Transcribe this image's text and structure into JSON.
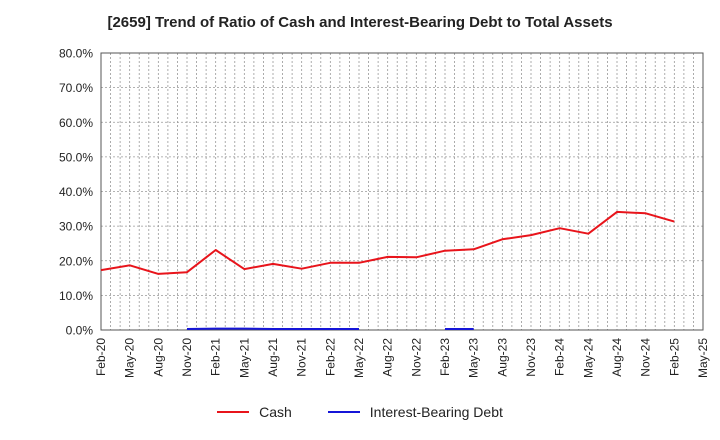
{
  "chart_data": {
    "type": "line",
    "title": "[2659]  Trend of Ratio of Cash and Interest-Bearing Debt to Total Assets",
    "xlabel": "",
    "ylabel": "",
    "ylim": [
      0,
      80
    ],
    "y_ticks": [
      "0.0%",
      "10.0%",
      "20.0%",
      "30.0%",
      "40.0%",
      "50.0%",
      "60.0%",
      "70.0%",
      "80.0%"
    ],
    "x_ticks": [
      "Feb-20",
      "May-20",
      "Aug-20",
      "Nov-20",
      "Feb-21",
      "May-21",
      "Aug-21",
      "Nov-21",
      "Feb-22",
      "May-22",
      "Aug-22",
      "Nov-22",
      "Feb-23",
      "May-23",
      "Aug-23",
      "Nov-23",
      "Feb-24",
      "May-24",
      "Aug-24",
      "Nov-24",
      "Feb-25",
      "May-25"
    ],
    "grid": true,
    "legend_position": "bottom",
    "series": [
      {
        "name": "Cash",
        "color": "#e8141b",
        "values": [
          17.3,
          18.7,
          16.2,
          16.7,
          23.1,
          17.6,
          19.1,
          17.7,
          19.4,
          19.4,
          21.1,
          21.0,
          22.9,
          23.3,
          26.2,
          27.4,
          29.4,
          27.8,
          34.1,
          33.7,
          31.3,
          null
        ]
      },
      {
        "name": "Interest-Bearing Debt",
        "color": "#1515d8",
        "values": [
          null,
          null,
          null,
          0.3,
          0.4,
          0.4,
          0.3,
          0.3,
          0.3,
          0.3,
          null,
          null,
          0.3,
          0.3,
          null,
          null,
          null,
          null,
          null,
          null,
          null,
          null
        ]
      }
    ]
  }
}
